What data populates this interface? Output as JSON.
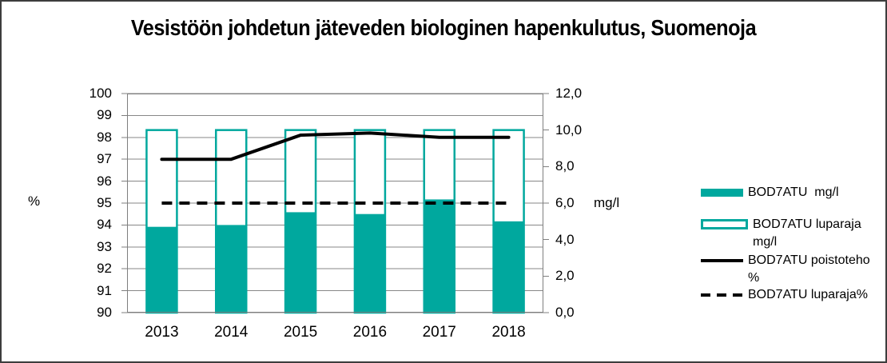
{
  "chart_data": {
    "type": "combo",
    "title": "Vesistöön johdetun jäteveden biologinen hapenkulutus, Suomenoja",
    "categories": [
      "2013",
      "2014",
      "2015",
      "2016",
      "2017",
      "2018"
    ],
    "series": [
      {
        "name": "BOD7ATU  mg/l",
        "kind": "bar-filled",
        "axis": "right",
        "values": [
          4.7,
          4.8,
          5.5,
          5.4,
          6.2,
          5.0
        ]
      },
      {
        "name": "BOD7ATU luparaja mg/l",
        "kind": "bar-outline",
        "axis": "right",
        "values": [
          10.0,
          10.0,
          10.0,
          10.0,
          10.0,
          10.0
        ]
      },
      {
        "name": "BOD7ATU poistoteho %",
        "kind": "line-solid",
        "axis": "left",
        "values": [
          97.0,
          97.0,
          98.1,
          98.2,
          98.0,
          98.0
        ]
      },
      {
        "name": "BOD7ATU luparaja%",
        "kind": "line-dashed",
        "axis": "left",
        "values": [
          95.0,
          95.0,
          95.0,
          95.0,
          95.0,
          95.0
        ]
      }
    ],
    "left_axis": {
      "title": "%",
      "min": 90,
      "max": 100,
      "tick_labels": [
        "100",
        "99",
        "98",
        "97",
        "96",
        "95",
        "94",
        "93",
        "92",
        "91",
        "90"
      ]
    },
    "right_axis": {
      "title": "mg/l",
      "min": 0,
      "max": 12,
      "tick_labels": [
        "12,0",
        "10,0",
        "8,0",
        "6,0",
        "4,0",
        "2,0",
        "0,0"
      ]
    },
    "grid": "horizontal",
    "legend_position": "right",
    "colors": {
      "bar": "#00A89E",
      "line": "#000000",
      "grid": "#878787",
      "axis": "#7f7f7f",
      "background": "#ffffff"
    }
  }
}
